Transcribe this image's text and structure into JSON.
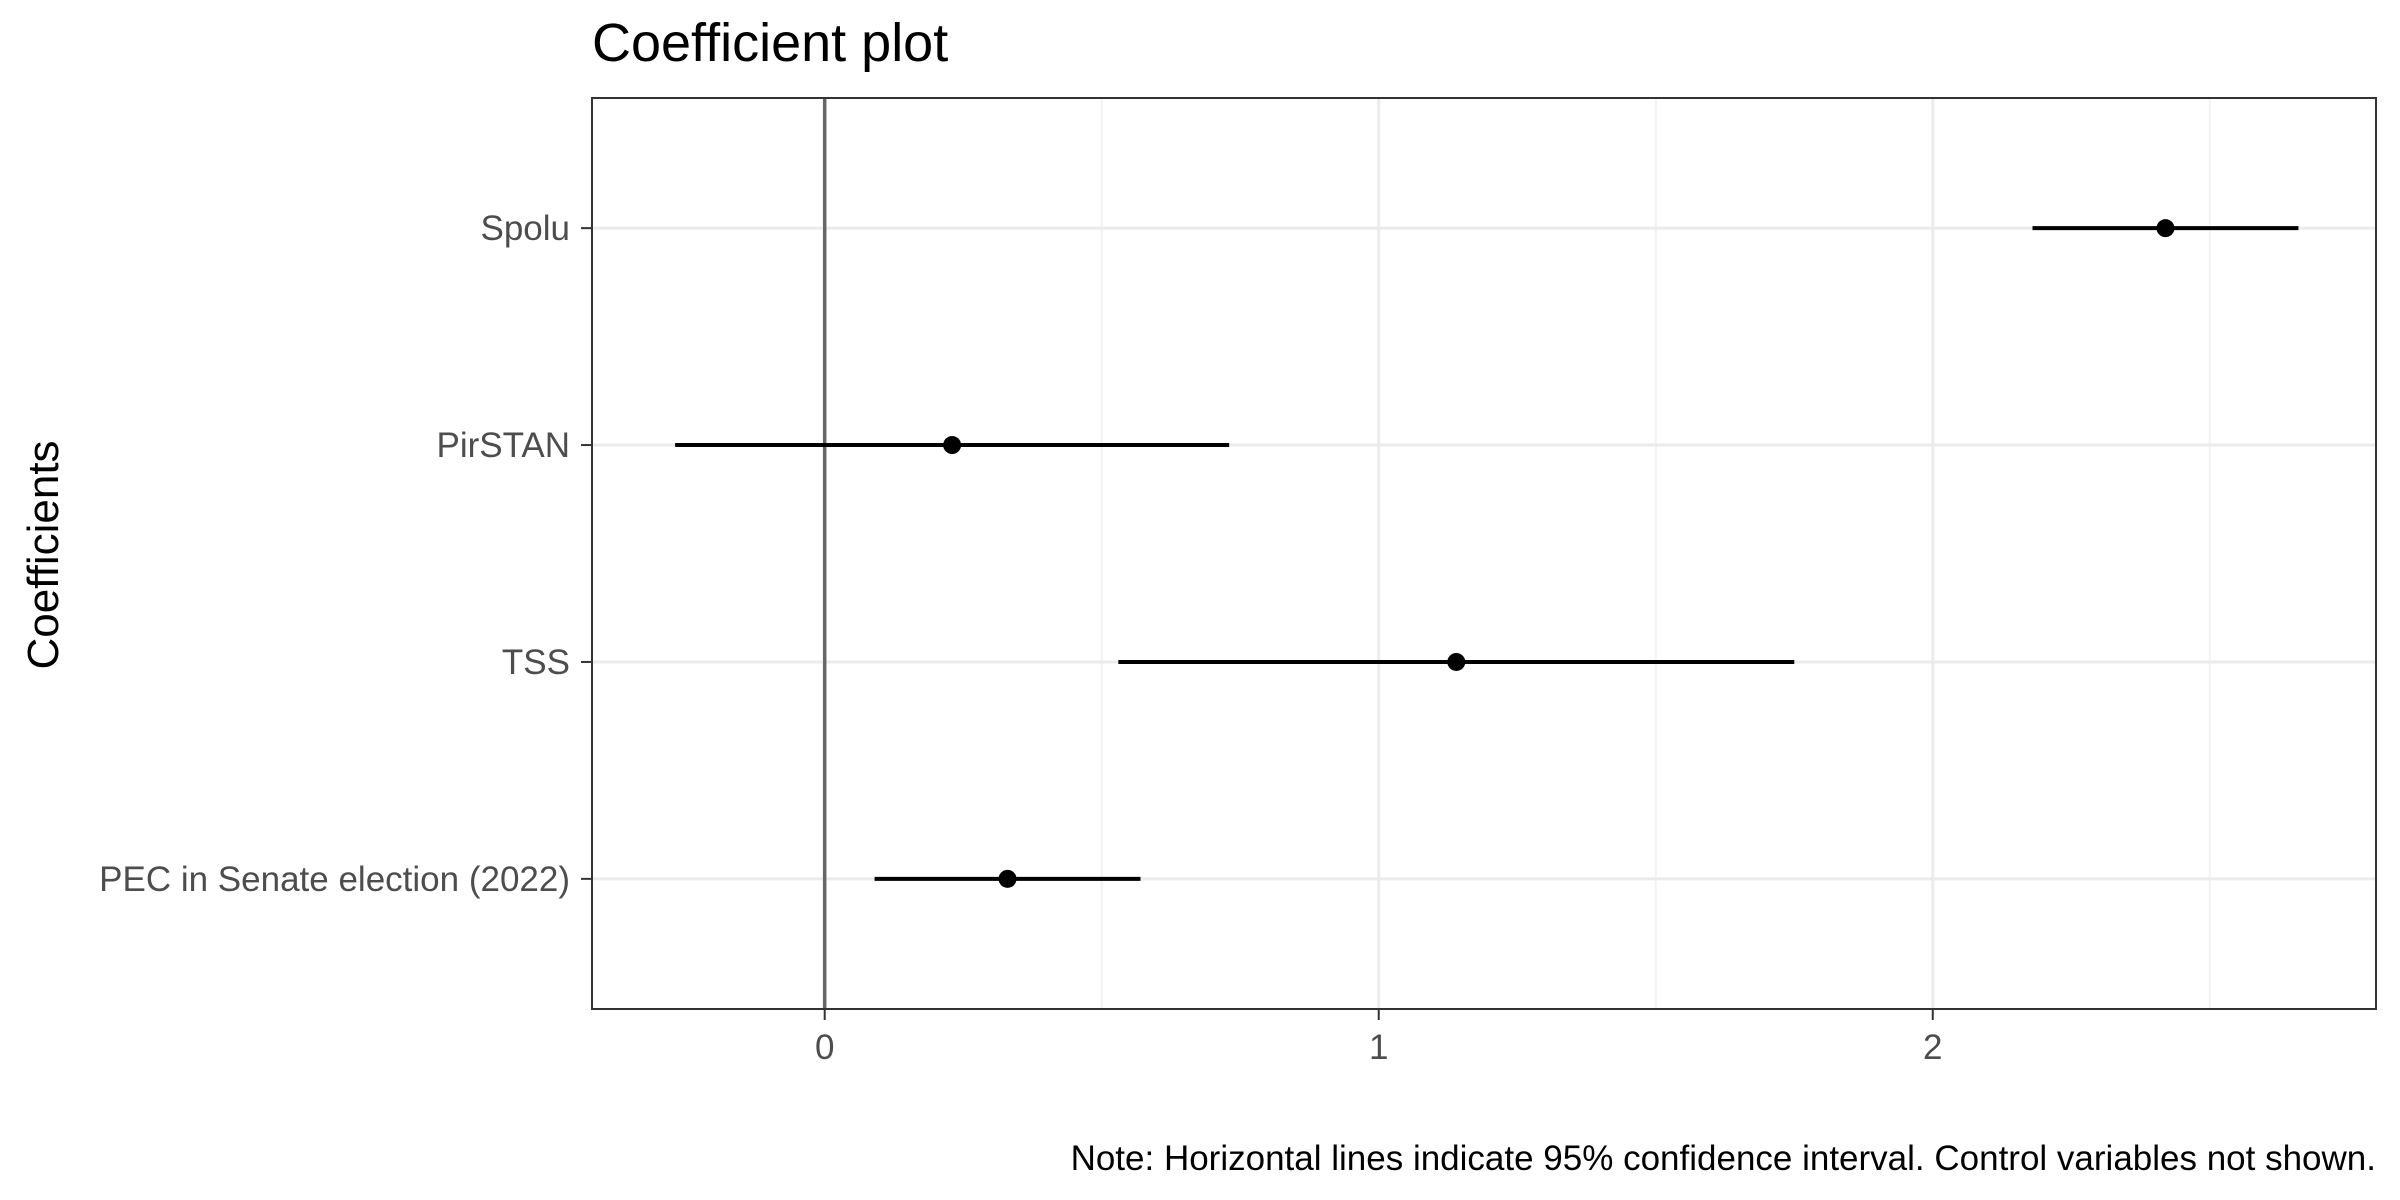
{
  "chart_data": {
    "type": "scatter",
    "title": "Coefficient plot",
    "xlabel": "",
    "ylabel": "Coefficients",
    "caption": "Note: Horizontal lines indicate 95% confidence interval. Control variables not shown.",
    "xlim": [
      -0.42,
      2.8
    ],
    "x_ticks": [
      0,
      1,
      2
    ],
    "x_tick_labels": [
      "0",
      "1",
      "2"
    ],
    "reference_line_x": 0,
    "grid": true,
    "legend": "none",
    "categories": [
      "Spolu",
      "PirSTAN",
      "TSS",
      "PEC in Senate election (2022)"
    ],
    "estimates": [
      2.42,
      0.23,
      1.14,
      0.33
    ],
    "ci_low": [
      2.18,
      -0.27,
      0.53,
      0.09
    ],
    "ci_high": [
      2.66,
      0.73,
      1.75,
      0.57
    ]
  },
  "colors": {
    "point": "#000000",
    "interval": "#000000",
    "reference_line": "#666666",
    "grid_major": "#ebebeb",
    "grid_minor": "#f3f3f3",
    "panel_border": "#333333",
    "tick_text": "#4d4d4d"
  }
}
